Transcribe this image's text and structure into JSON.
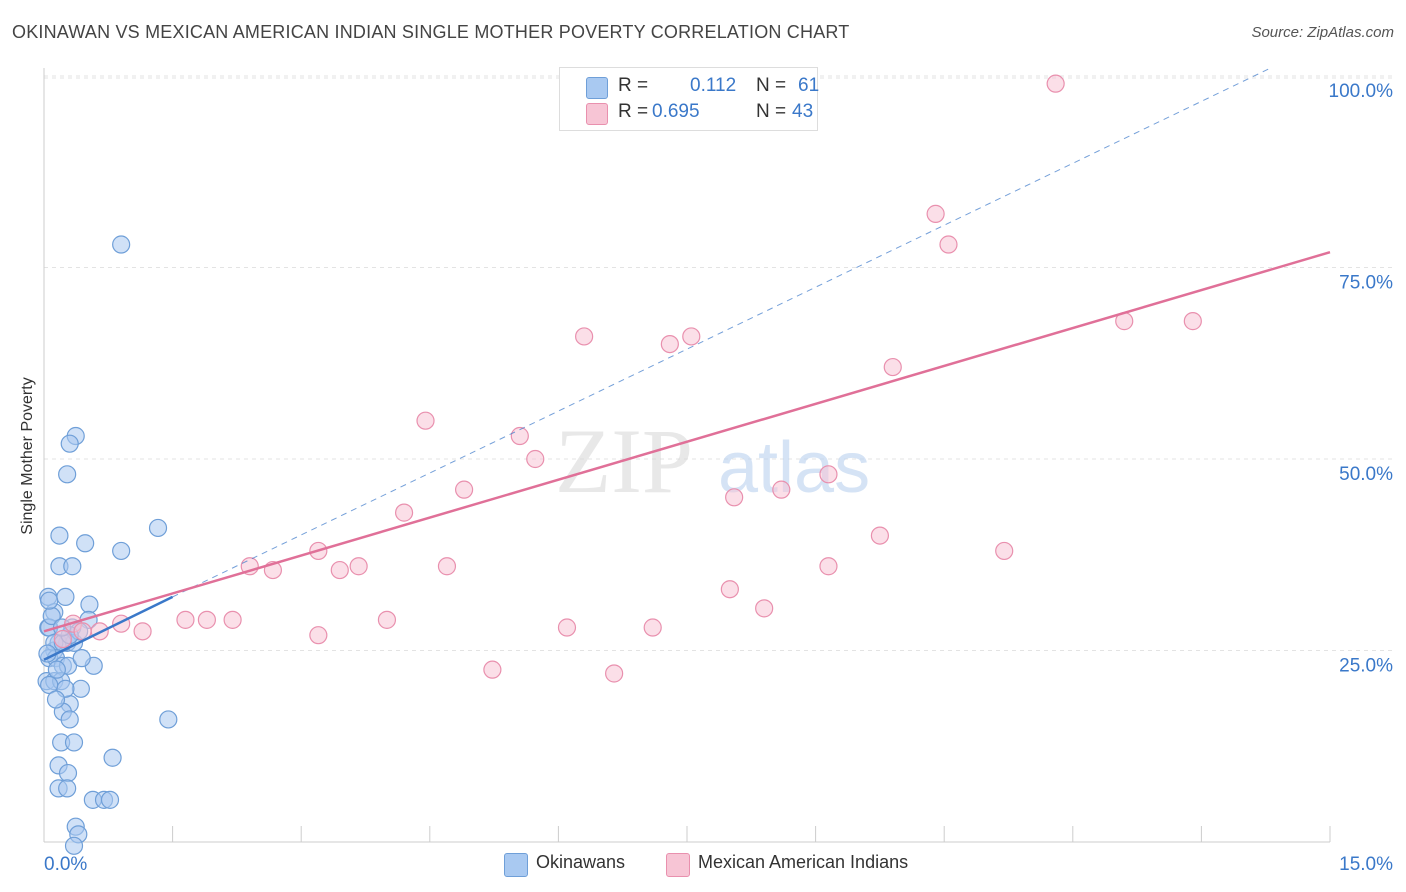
{
  "title": "OKINAWAN VS MEXICAN AMERICAN INDIAN SINGLE MOTHER POVERTY CORRELATION CHART",
  "source": "Source: ZipAtlas.com",
  "watermark": {
    "zip": "ZIP",
    "atlas": "atlas"
  },
  "legend_top": [
    {
      "r_label": "R =",
      "r_value": "0.112",
      "n_label": "N =",
      "n_value": "61"
    },
    {
      "r_label": "R =",
      "r_value": "0.695",
      "n_label": "N =",
      "n_value": "43"
    }
  ],
  "colors": {
    "blue_fill": "#a9c9f1",
    "blue_stroke": "#6f9fd8",
    "blue_line": "#3a78c9",
    "pink_fill": "#f7c5d5",
    "pink_stroke": "#e990ae",
    "pink_line": "#e07098",
    "axis_text": "#3a78c9",
    "grid": "#e3e3e3"
  },
  "chart_data": {
    "type": "scatter",
    "ylabel": "Single Mother Poverty",
    "xlim": [
      0,
      15
    ],
    "ylim": [
      0,
      102
    ],
    "x_tick_labels": [
      {
        "value": 0,
        "label": "0.0%"
      },
      {
        "value": 15,
        "label": "15.0%"
      }
    ],
    "y_tick_labels": [
      {
        "value": 25,
        "label": "25.0%"
      },
      {
        "value": 50,
        "label": "50.0%"
      },
      {
        "value": 75,
        "label": "75.0%"
      },
      {
        "value": 100,
        "label": "100.0%"
      }
    ],
    "legend": "bottom-center",
    "grid": true,
    "series": [
      {
        "name": "Okinawans",
        "color": "#a9c9f1",
        "points": [
          [
            0.9,
            78
          ],
          [
            0.37,
            53
          ],
          [
            0.3,
            52
          ],
          [
            0.27,
            48
          ],
          [
            1.33,
            41
          ],
          [
            0.18,
            40
          ],
          [
            0.48,
            39
          ],
          [
            0.9,
            38
          ],
          [
            0.18,
            36
          ],
          [
            0.33,
            36
          ],
          [
            0.05,
            32
          ],
          [
            0.25,
            32
          ],
          [
            0.53,
            31
          ],
          [
            0.05,
            28
          ],
          [
            0.12,
            30
          ],
          [
            0.52,
            29
          ],
          [
            0.06,
            28
          ],
          [
            0.33,
            28
          ],
          [
            0.12,
            25
          ],
          [
            0.17,
            26
          ],
          [
            0.27,
            26
          ],
          [
            0.35,
            26
          ],
          [
            0.12,
            26
          ],
          [
            0.22,
            26
          ],
          [
            0.06,
            24
          ],
          [
            0.14,
            24
          ],
          [
            0.22,
            23
          ],
          [
            0.28,
            23
          ],
          [
            0.58,
            23
          ],
          [
            0.03,
            21
          ],
          [
            0.12,
            21
          ],
          [
            0.2,
            21
          ],
          [
            0.43,
            20
          ],
          [
            0.3,
            18
          ],
          [
            0.22,
            17
          ],
          [
            0.3,
            16
          ],
          [
            1.45,
            16
          ],
          [
            0.2,
            13
          ],
          [
            0.35,
            13
          ],
          [
            0.8,
            11
          ],
          [
            0.17,
            10
          ],
          [
            0.28,
            9
          ],
          [
            0.17,
            7
          ],
          [
            0.27,
            7
          ],
          [
            0.57,
            5.5
          ],
          [
            0.7,
            5.5
          ],
          [
            0.77,
            5.5
          ],
          [
            0.37,
            2
          ],
          [
            0.4,
            1
          ],
          [
            0.35,
            -0.5
          ],
          [
            0.04,
            24.6
          ],
          [
            0.09,
            29.5
          ],
          [
            0.15,
            22.5
          ],
          [
            0.41,
            27.5
          ],
          [
            0.25,
            20
          ],
          [
            0.06,
            31.5
          ],
          [
            0.3,
            27
          ],
          [
            0.21,
            28
          ],
          [
            0.44,
            24
          ],
          [
            0.06,
            20.5
          ],
          [
            0.14,
            18.6
          ]
        ]
      },
      {
        "name": "Mexican American Indians",
        "color": "#f7c5d5",
        "points": [
          [
            11.8,
            99
          ],
          [
            10.4,
            82
          ],
          [
            10.55,
            78
          ],
          [
            12.6,
            68
          ],
          [
            13.4,
            68
          ],
          [
            6.3,
            66
          ],
          [
            7.3,
            65
          ],
          [
            7.55,
            66
          ],
          [
            9.9,
            62
          ],
          [
            4.45,
            55
          ],
          [
            5.55,
            53
          ],
          [
            5.73,
            50
          ],
          [
            4.9,
            46
          ],
          [
            8.05,
            45
          ],
          [
            9.15,
            48
          ],
          [
            8.6,
            46
          ],
          [
            4.2,
            43
          ],
          [
            3.2,
            38
          ],
          [
            11.2,
            38
          ],
          [
            9.15,
            36
          ],
          [
            9.75,
            40
          ],
          [
            2.4,
            36
          ],
          [
            2.67,
            35.5
          ],
          [
            3.45,
            35.5
          ],
          [
            3.67,
            36
          ],
          [
            4.7,
            36
          ],
          [
            8.0,
            33
          ],
          [
            1.65,
            29
          ],
          [
            1.9,
            29
          ],
          [
            2.2,
            29
          ],
          [
            3.2,
            27
          ],
          [
            6.1,
            28
          ],
          [
            7.1,
            28
          ],
          [
            4.0,
            29
          ],
          [
            8.4,
            30.5
          ],
          [
            0.65,
            27.5
          ],
          [
            0.9,
            28.5
          ],
          [
            1.15,
            27.5
          ],
          [
            0.22,
            26.5
          ],
          [
            0.34,
            28.5
          ],
          [
            0.45,
            27.5
          ],
          [
            5.23,
            22.5
          ],
          [
            6.65,
            22
          ]
        ]
      }
    ],
    "trendlines": [
      {
        "series": "Okinawans",
        "style": "solid",
        "from": [
          0,
          23.8
        ],
        "to": [
          1.5,
          32.0
        ]
      },
      {
        "series": "Okinawans",
        "style": "dashed",
        "from": [
          1.5,
          32.0
        ],
        "to": [
          14.3,
          101
        ]
      },
      {
        "series": "Mexican American Indians",
        "style": "solid",
        "from": [
          0,
          27.5
        ],
        "to": [
          15,
          77
        ]
      }
    ]
  }
}
